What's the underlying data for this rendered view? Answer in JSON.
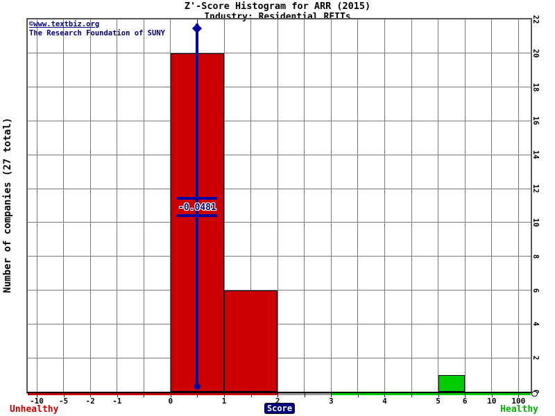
{
  "header": {
    "title": "Z'-Score Histogram for ARR (2015)",
    "subtitle": "Industry: Residential REITs"
  },
  "watermark": {
    "line1": "©www.textbiz.org",
    "line2": "The Research Foundation of SUNY"
  },
  "axis_labels": {
    "x": "Score",
    "y": "Number of companies (27 total)",
    "left_status": "Unhealthy",
    "right_status": "Healthy"
  },
  "colors": {
    "bar_red": "#cc0000",
    "bar_green": "#00cc00",
    "zone_gray": "#999999",
    "marker_line": "#0000a0",
    "marker_text": "#000080",
    "watermark_navy": "#000080",
    "unhealthy_text": "#cc0000",
    "healthy_text": "#00b300",
    "grid_gray": "#787878"
  },
  "chart_data": {
    "type": "bar",
    "title": "Z'-Score Histogram for ARR (2015)",
    "subtitle": "Industry: Residential REITs",
    "xlabel": "Score",
    "ylabel": "Number of companies (27 total)",
    "total_companies": 27,
    "grid": true,
    "ylim": [
      0,
      22
    ],
    "y_ticks": [
      0,
      2,
      4,
      6,
      8,
      10,
      12,
      14,
      16,
      18,
      20,
      22
    ],
    "n_positions": 19,
    "x_ticks": [
      {
        "label": "-10",
        "index": 0
      },
      {
        "label": "-5",
        "index": 1
      },
      {
        "label": "-2",
        "index": 2
      },
      {
        "label": "-1",
        "index": 3
      },
      {
        "label": "0",
        "index": 5
      },
      {
        "label": "1",
        "index": 7
      },
      {
        "label": "2",
        "index": 9
      },
      {
        "label": "3",
        "index": 11
      },
      {
        "label": "4",
        "index": 13
      },
      {
        "label": "5",
        "index": 15
      },
      {
        "label": "6",
        "index": 16
      },
      {
        "label": "10",
        "index": 17
      },
      {
        "label": "100",
        "index": 18
      }
    ],
    "bars": [
      {
        "range": "0 to 1",
        "from_index": 5,
        "to_index": 7,
        "value": 20,
        "color": "#cc0000",
        "zone": "unhealthy"
      },
      {
        "range": "1 to 2",
        "from_index": 7,
        "to_index": 9,
        "value": 6,
        "color": "#cc0000",
        "zone": "unhealthy"
      },
      {
        "range": "5 to 6",
        "from_index": 15,
        "to_index": 16,
        "value": 1,
        "color": "#00cc00",
        "zone": "healthy"
      }
    ],
    "marker": {
      "value_label": "-0.0481",
      "x_index": 6,
      "color": "#0000a0"
    },
    "axis_zones": [
      {
        "name": "unhealthy",
        "to_index": 9,
        "color": "#cc0000"
      },
      {
        "name": "gray",
        "to_index": 11,
        "color": "#999999"
      },
      {
        "name": "healthy",
        "to_index": null,
        "color": "#00cc00"
      }
    ]
  }
}
